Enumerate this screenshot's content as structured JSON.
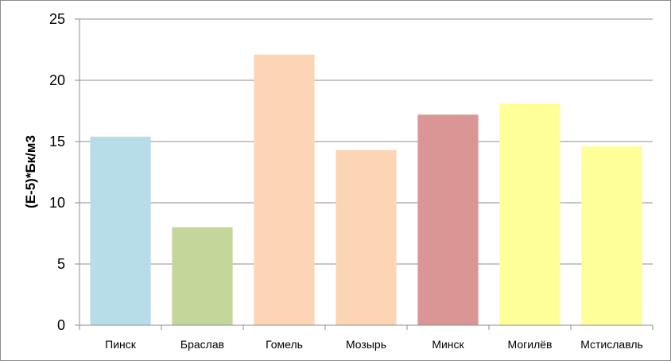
{
  "chart_data": {
    "type": "bar",
    "title": "",
    "xlabel": "",
    "ylabel": "(E-5)*Бк/м3",
    "ylim": [
      0,
      25
    ],
    "yticks": [
      0,
      5,
      10,
      15,
      20,
      25
    ],
    "grid": true,
    "legend": "none",
    "categories": [
      "Пинск",
      "Браслав",
      "Гомель",
      "Мозырь",
      "Минск",
      "Могилёв",
      "Мстиславль"
    ],
    "values": [
      15.4,
      8.0,
      22.1,
      14.3,
      17.2,
      18.1,
      14.6
    ],
    "colors": [
      "#b7dde8",
      "#c4d79b",
      "#fcd5b4",
      "#fcd5b4",
      "#da9694",
      "#ffff99",
      "#ffff99"
    ]
  }
}
